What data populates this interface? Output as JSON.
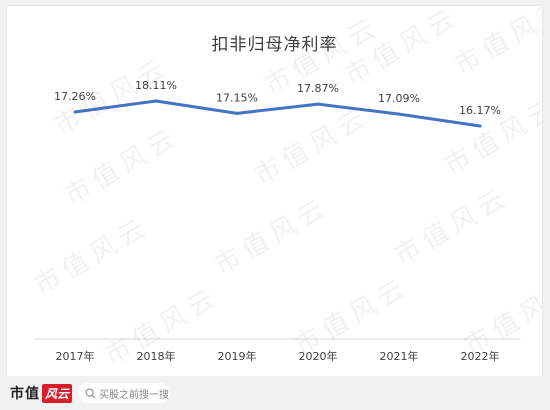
{
  "chart_data": {
    "type": "line",
    "title": "扣非归母净利率",
    "categories": [
      "2017年",
      "2018年",
      "2019年",
      "2020年",
      "2021年",
      "2022年"
    ],
    "values": [
      17.26,
      18.11,
      17.15,
      17.87,
      17.09,
      16.17
    ],
    "data_labels": [
      "17.26%",
      "18.11%",
      "17.15%",
      "17.87%",
      "17.09%",
      "16.17%"
    ],
    "line_color": "#4472c4",
    "grid": false,
    "legend": "none"
  },
  "watermark": {
    "text": "市值风云"
  },
  "footer": {
    "brand": "市值",
    "brand_badge": "风云",
    "search_placeholder": "买股之前搜一搜"
  }
}
